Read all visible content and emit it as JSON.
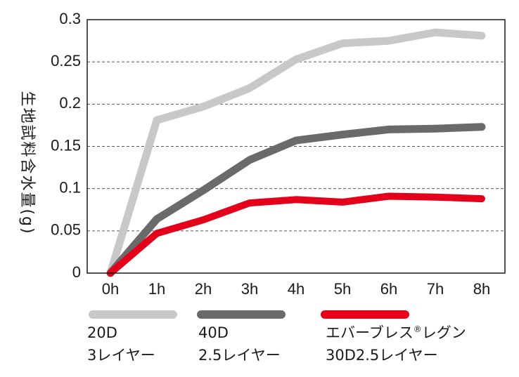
{
  "chart_data": {
    "type": "line",
    "ylabel": "生地試料含水量(g)",
    "xlabel": "",
    "ylim": [
      0,
      0.3
    ],
    "yticks": [
      "0",
      "0.05",
      "0.1",
      "0.15",
      "0.2",
      "0.25",
      "0.3"
    ],
    "ytick_values": [
      0,
      0.05,
      0.1,
      0.15,
      0.2,
      0.25,
      0.3
    ],
    "categories": [
      "0h",
      "1h",
      "2h",
      "3h",
      "4h",
      "5h",
      "6h",
      "7h",
      "8h"
    ],
    "grid": "horizontal dashed",
    "legend_placement": "bottom",
    "series": [
      {
        "legend_lines": [
          "20D",
          "3レイヤー"
        ],
        "color": "#c8c8c8",
        "values": [
          0,
          0.181,
          0.197,
          0.219,
          0.253,
          0.272,
          0.275,
          0.285,
          0.281
        ]
      },
      {
        "legend_lines": [
          "40D",
          "2.5レイヤー"
        ],
        "color": "#6a6a6a",
        "values": [
          0,
          0.064,
          0.098,
          0.134,
          0.157,
          0.164,
          0.17,
          0.171,
          0.173
        ]
      },
      {
        "legend_lines": [
          "エバーブレス",
          "®",
          "レグン",
          "30D2.5レイヤー"
        ],
        "color": "#e4001b",
        "values": [
          0,
          0.047,
          0.063,
          0.083,
          0.087,
          0.084,
          0.091,
          0.09,
          0.088
        ]
      }
    ]
  }
}
